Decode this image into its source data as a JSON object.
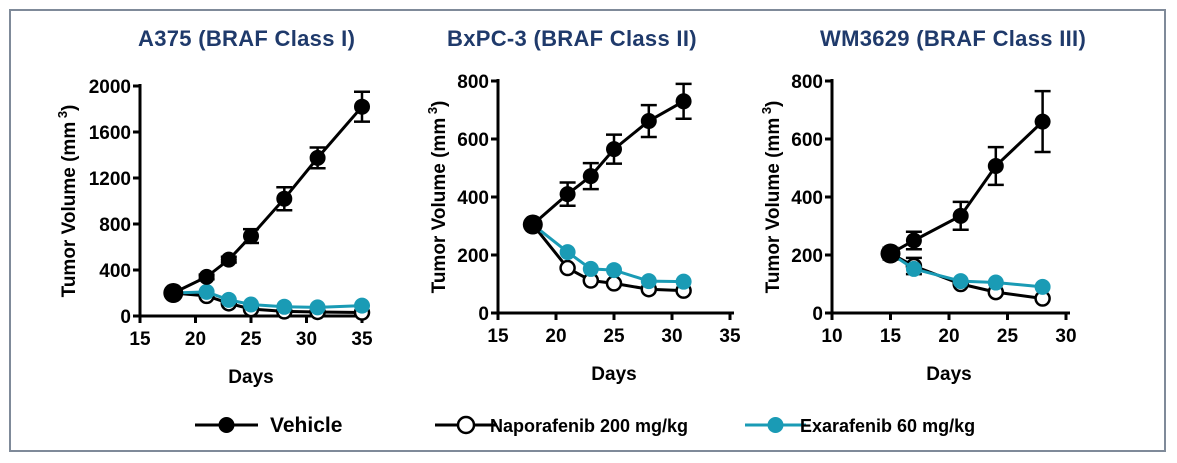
{
  "chart_data": [
    {
      "type": "line",
      "title": "A375 (BRAF Class I)",
      "xlabel": "Days",
      "ylabel": "Tumor Volume (mm",
      "ylabel_sup": "3",
      "ylabel_end": ")",
      "xlim": [
        15,
        35
      ],
      "xticks": [
        15,
        20,
        25,
        30,
        35
      ],
      "ylim": [
        0,
        2000
      ],
      "yticks": [
        0,
        400,
        800,
        1200,
        1600,
        2000
      ],
      "series": [
        {
          "name": "Vehicle",
          "x": [
            18,
            21,
            23,
            25,
            28,
            31,
            35
          ],
          "y": [
            200,
            340,
            490,
            695,
            1020,
            1375,
            1820
          ],
          "err": [
            0,
            20,
            25,
            60,
            100,
            90,
            130
          ]
        },
        {
          "name": "Naporafenib 200 mg/kg",
          "x": [
            18,
            21,
            23,
            25,
            28,
            31,
            35
          ],
          "y": [
            200,
            175,
            110,
            60,
            40,
            35,
            30
          ],
          "err": [
            0,
            0,
            0,
            0,
            0,
            0,
            0
          ]
        },
        {
          "name": "Exarafenib 60 mg/kg",
          "x": [
            18,
            21,
            23,
            25,
            28,
            31,
            35
          ],
          "y": [
            200,
            210,
            140,
            100,
            80,
            75,
            90
          ],
          "err": [
            0,
            0,
            0,
            0,
            0,
            0,
            0
          ]
        }
      ]
    },
    {
      "type": "line",
      "title": "BxPC-3 (BRAF Class II)",
      "xlabel": "Days",
      "ylabel": "Tumor Volume (mm",
      "ylabel_sup": "3",
      "ylabel_end": ")",
      "xlim": [
        15,
        35
      ],
      "xticks": [
        15,
        20,
        25,
        30,
        35
      ],
      "ylim": [
        0,
        800
      ],
      "yticks": [
        0,
        200,
        400,
        600,
        800
      ],
      "series": [
        {
          "name": "Vehicle",
          "x": [
            18,
            21,
            23,
            25,
            28,
            31
          ],
          "y": [
            305,
            410,
            472,
            565,
            662,
            730
          ],
          "err": [
            0,
            40,
            45,
            50,
            55,
            60
          ]
        },
        {
          "name": "Naporafenib 200 mg/kg",
          "x": [
            18,
            21,
            23,
            25,
            28,
            31
          ],
          "y": [
            305,
            155,
            112,
            102,
            82,
            77
          ],
          "err": [
            0,
            0,
            0,
            0,
            0,
            0
          ]
        },
        {
          "name": "Exarafenib 60 mg/kg",
          "x": [
            18,
            21,
            23,
            25,
            28,
            31
          ],
          "y": [
            305,
            210,
            152,
            148,
            110,
            108
          ],
          "err": [
            0,
            0,
            0,
            0,
            0,
            0
          ]
        }
      ]
    },
    {
      "type": "line",
      "title": "WM3629 (BRAF Class III)",
      "xlabel": "Days",
      "ylabel": "Tumor Volume (mm",
      "ylabel_sup": "3",
      "ylabel_end": ")",
      "xlim": [
        10,
        30
      ],
      "xticks": [
        10,
        15,
        20,
        25,
        30
      ],
      "ylim": [
        0,
        800
      ],
      "yticks": [
        0,
        200,
        400,
        600,
        800
      ],
      "series": [
        {
          "name": "Vehicle",
          "x": [
            15,
            17,
            21,
            24,
            28
          ],
          "y": [
            205,
            250,
            335,
            507,
            660
          ],
          "err": [
            20,
            30,
            48,
            65,
            105
          ]
        },
        {
          "name": "Naporafenib 200 mg/kg",
          "x": [
            15,
            17,
            21,
            24,
            28
          ],
          "y": [
            205,
            162,
            100,
            72,
            50
          ],
          "err": [
            20,
            28,
            0,
            0,
            0
          ]
        },
        {
          "name": "Exarafenib 60 mg/kg",
          "x": [
            15,
            17,
            21,
            24,
            28
          ],
          "y": [
            205,
            152,
            110,
            105,
            90
          ],
          "err": [
            0,
            0,
            0,
            0,
            0
          ]
        }
      ]
    }
  ],
  "legend": {
    "placement": "bottom",
    "items": [
      {
        "label": "Vehicle",
        "marker": "filled-circle",
        "color": "#000000"
      },
      {
        "label": "Naporafenib 200 mg/kg",
        "marker": "open-circle",
        "color": "#000000"
      },
      {
        "label": "Exarafenib 60 mg/kg",
        "marker": "filled-circle",
        "color": "#1a9bb5"
      }
    ]
  },
  "colors": {
    "title": "#1f3a6b",
    "frame": "#7f8a99"
  }
}
